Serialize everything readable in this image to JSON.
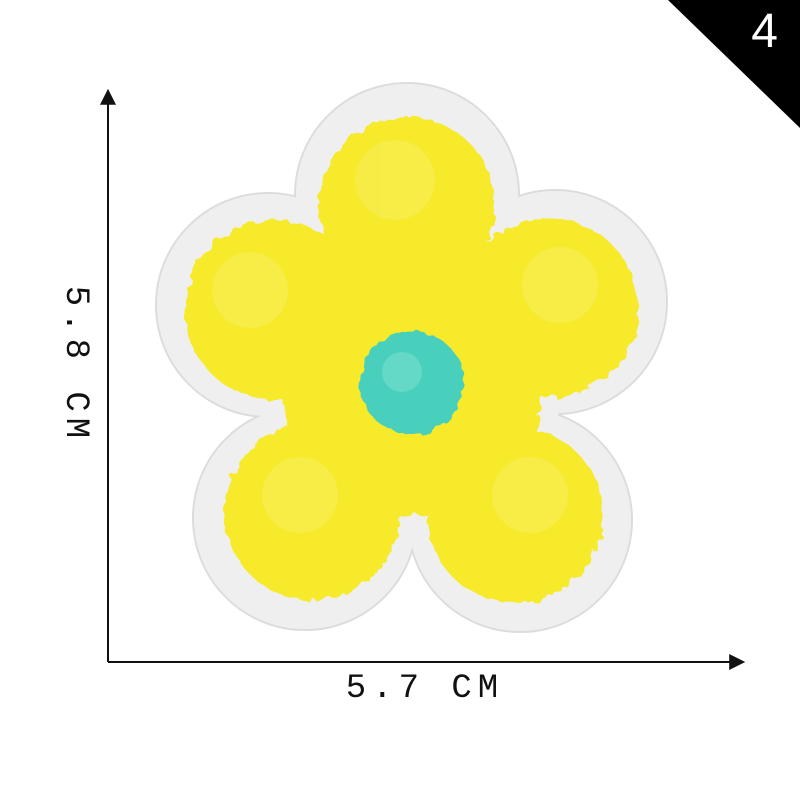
{
  "badge": {
    "number": "4",
    "color": "#000000"
  },
  "dimensions": {
    "width_label": "5.7 CM",
    "height_label": "5.8 CM"
  },
  "patch": {
    "petal_color": "#f6ea2a",
    "center_color": "#48d0bd",
    "border_color": "#eeeeee"
  }
}
